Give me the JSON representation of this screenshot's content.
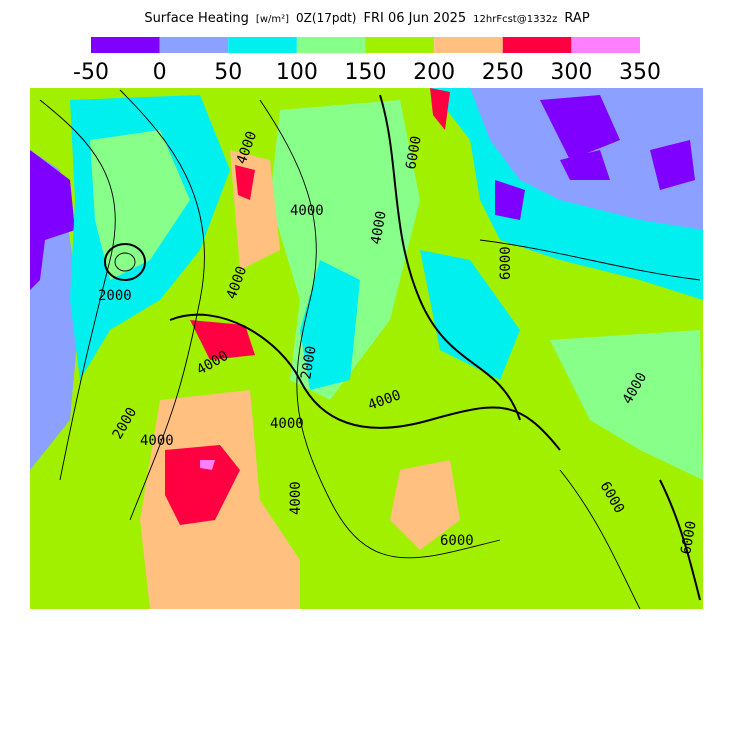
{
  "header": {
    "title_parts": [
      "Surface Heating",
      "[w/m²]",
      "0Z(17pdt)",
      "FRI 06 Jun 2025",
      "12hrFcst@1332z",
      "RAP"
    ]
  },
  "legend": {
    "colors": [
      "#7f00ff",
      "#8ca0ff",
      "#00f0f0",
      "#88ff88",
      "#a0f000",
      "#ffc080",
      "#ff0040",
      "#ff80ff"
    ],
    "ticks": [
      -50,
      0,
      50,
      100,
      150,
      200,
      250,
      300,
      350
    ]
  },
  "map": {
    "contour_labels": [
      "4000",
      "4000",
      "4000",
      "2000",
      "4000",
      "2000",
      "4000",
      "2000",
      "4000",
      "6000",
      "4000",
      "6000",
      "4000",
      "6000",
      "6000",
      "4000",
      "4000",
      "6000"
    ]
  }
}
